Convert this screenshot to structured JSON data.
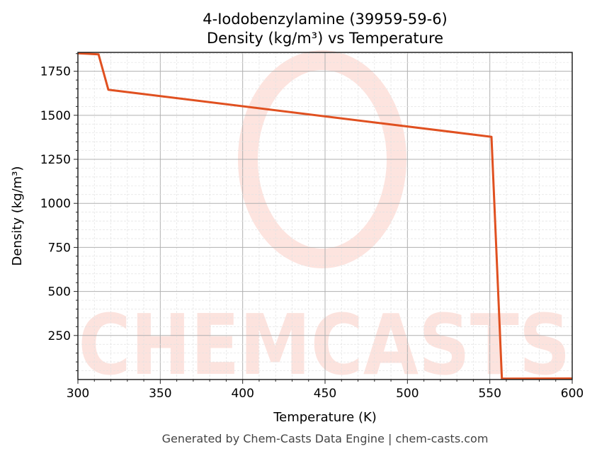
{
  "chart_data": {
    "type": "line",
    "title": "4-Iodobenzylamine (39959-59-6)",
    "subtitle": "Density (kg/m³) vs Temperature",
    "xlabel": "Temperature (K)",
    "ylabel": "Density (kg/m³)",
    "xlim": [
      300,
      600
    ],
    "ylim": [
      0,
      1857
    ],
    "xticks": [
      300,
      350,
      400,
      450,
      500,
      550,
      600
    ],
    "yticks": [
      250,
      500,
      750,
      1000,
      1250,
      1500,
      1750
    ],
    "grid": true,
    "series": [
      {
        "name": "Density",
        "color": "#e05020",
        "x": [
          300,
          312.5,
          318.5,
          551,
          557.3,
          600
        ],
        "y": [
          1852,
          1846,
          1645,
          1378,
          5,
          6
        ]
      }
    ]
  },
  "watermark": "CHEMCASTS",
  "footer": "Generated by Chem-Casts Data Engine | chem-casts.com"
}
